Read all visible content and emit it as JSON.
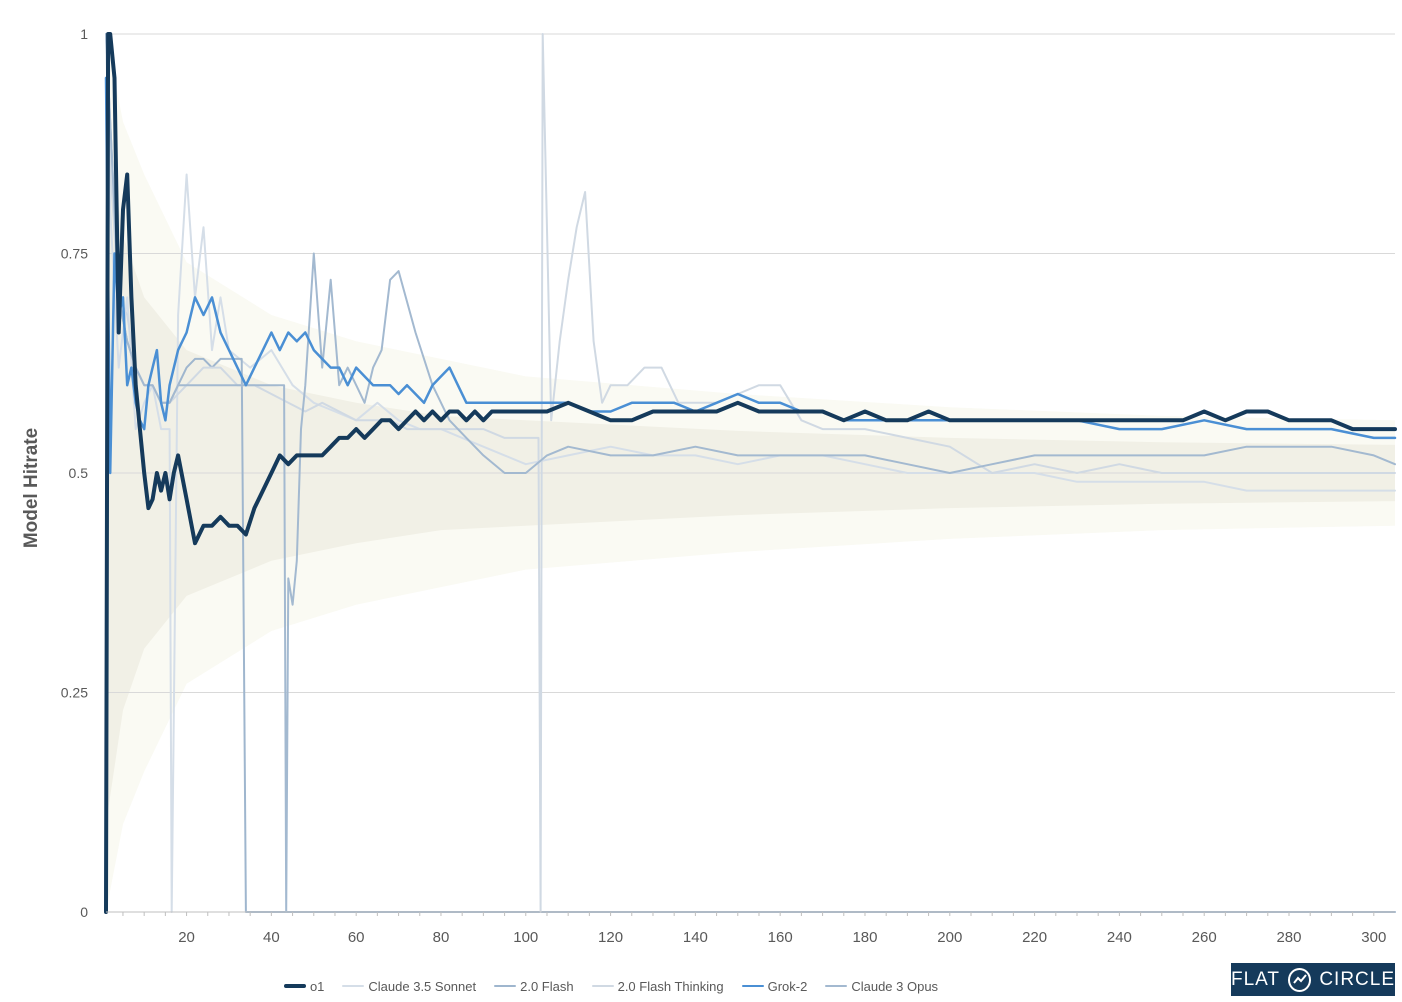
{
  "chart_data": {
    "type": "line",
    "ylabel": "Model Hitrate",
    "xlabel": "",
    "xlim": [
      1,
      305
    ],
    "ylim": [
      0,
      1
    ],
    "x_ticks": [
      20,
      40,
      60,
      80,
      100,
      120,
      140,
      160,
      180,
      200,
      220,
      240,
      260,
      280,
      300
    ],
    "y_ticks": [
      {
        "value": 0,
        "label": "0"
      },
      {
        "value": 0.25,
        "label": "0.25"
      },
      {
        "value": 0.5,
        "label": "0.5"
      },
      {
        "value": 0.75,
        "label": "0.75"
      },
      {
        "value": 1,
        "label": "1"
      }
    ],
    "grid": "horizontal",
    "legend_position": "bottom",
    "bands": [
      {
        "color": "#fafaf3",
        "x": [
          1,
          5,
          10,
          20,
          40,
          60,
          80,
          100,
          150,
          200,
          250,
          305
        ],
        "upper": [
          1.0,
          0.9,
          0.84,
          0.74,
          0.68,
          0.65,
          0.63,
          0.61,
          0.59,
          0.575,
          0.565,
          0.56
        ],
        "lower": [
          0.0,
          0.1,
          0.16,
          0.26,
          0.32,
          0.35,
          0.37,
          0.39,
          0.41,
          0.425,
          0.435,
          0.44
        ]
      },
      {
        "color": "#f1f0e6",
        "x": [
          1,
          5,
          10,
          20,
          40,
          60,
          80,
          100,
          150,
          200,
          250,
          305
        ],
        "upper": [
          0.9,
          0.77,
          0.7,
          0.64,
          0.6,
          0.58,
          0.565,
          0.56,
          0.548,
          0.54,
          0.535,
          0.532
        ],
        "lower": [
          0.1,
          0.23,
          0.3,
          0.36,
          0.4,
          0.42,
          0.435,
          0.44,
          0.452,
          0.46,
          0.465,
          0.468
        ]
      }
    ],
    "series": [
      {
        "name": "Claude 3.5 Sonnet",
        "color": "#d5dee8",
        "width": 2,
        "x": [
          1,
          2,
          4,
          6,
          8,
          10,
          12,
          14,
          16,
          16.5,
          18,
          20,
          22,
          24,
          26,
          28,
          30,
          35,
          40,
          45,
          50,
          55,
          60,
          65,
          70,
          75,
          80,
          85,
          90,
          95,
          100,
          110,
          120,
          130,
          140,
          150,
          160,
          170,
          180,
          190,
          200,
          210,
          220,
          230,
          240,
          250,
          260,
          270,
          280,
          290,
          300,
          305
        ],
        "y": [
          1,
          0.8,
          0.62,
          0.7,
          0.55,
          0.58,
          0.6,
          0.55,
          0.55,
          0,
          0.68,
          0.84,
          0.7,
          0.78,
          0.64,
          0.7,
          0.64,
          0.62,
          0.64,
          0.6,
          0.58,
          0.57,
          0.56,
          0.58,
          0.56,
          0.55,
          0.55,
          0.54,
          0.53,
          0.52,
          0.51,
          0.52,
          0.53,
          0.52,
          0.52,
          0.51,
          0.52,
          0.52,
          0.51,
          0.5,
          0.5,
          0.5,
          0.5,
          0.49,
          0.49,
          0.49,
          0.49,
          0.48,
          0.48,
          0.48,
          0.48,
          0.48
        ]
      },
      {
        "name": "2.0 Flash",
        "color": "#9fb6ce",
        "width": 2,
        "x": [
          1,
          2,
          4,
          6,
          8,
          10,
          12,
          14,
          16,
          18,
          20,
          22,
          24,
          26,
          28,
          30,
          33,
          34,
          36,
          38,
          40,
          42,
          44,
          46,
          48,
          50,
          52,
          55,
          58,
          60,
          63,
          66,
          70,
          74,
          78,
          82,
          86,
          90,
          95,
          100,
          110,
          120,
          130,
          140,
          150,
          160,
          170,
          180,
          190,
          200,
          210,
          220,
          230,
          240,
          250,
          260,
          270,
          280,
          290,
          300,
          305
        ],
        "y": [
          1,
          0.9,
          0.7,
          0.65,
          0.62,
          0.6,
          0.6,
          0.58,
          0.58,
          0.6,
          0.62,
          0.63,
          0.63,
          0.62,
          0.63,
          0.63,
          0.63,
          0,
          0.0,
          0.0,
          0.0,
          0.0,
          0.0,
          0.0,
          0.0,
          0.0,
          0.0,
          0.0,
          0.0,
          0.0,
          0.0,
          0.0,
          0.0,
          0.0,
          0.0,
          0.0,
          0.0,
          0.0,
          0.0,
          0.0,
          0.0,
          0.0,
          0.0,
          0.0,
          0.0,
          0.0,
          0.0,
          0.0,
          0.0,
          0.0,
          0.0,
          0.0,
          0.0,
          0.0,
          0.0,
          0.0,
          0.0,
          0.0,
          0.0,
          0.0,
          0.0
        ]
      },
      {
        "name": "2.0 Flash Thinking",
        "color": "#d0d9e3",
        "width": 2,
        "x": [
          1,
          2,
          4,
          6,
          8,
          10,
          12,
          14,
          16,
          20,
          24,
          28,
          32,
          36,
          40,
          44,
          48,
          52,
          56,
          60,
          64,
          68,
          72,
          76,
          80,
          85,
          90,
          95,
          100,
          103,
          103.5,
          104,
          106,
          108,
          110,
          112,
          114,
          116,
          118,
          120,
          124,
          128,
          132,
          136,
          140,
          145,
          150,
          155,
          160,
          165,
          170,
          180,
          190,
          200,
          210,
          220,
          230,
          240,
          250,
          260,
          270,
          280,
          290,
          300,
          305
        ],
        "y": [
          1,
          0.85,
          0.7,
          0.68,
          0.62,
          0.6,
          0.6,
          0.58,
          0.58,
          0.6,
          0.62,
          0.62,
          0.6,
          0.6,
          0.59,
          0.58,
          0.57,
          0.58,
          0.57,
          0.56,
          0.56,
          0.56,
          0.55,
          0.55,
          0.55,
          0.55,
          0.55,
          0.54,
          0.54,
          0.54,
          0,
          1,
          0.56,
          0.65,
          0.72,
          0.78,
          0.82,
          0.65,
          0.58,
          0.6,
          0.6,
          0.62,
          0.62,
          0.58,
          0.58,
          0.58,
          0.59,
          0.6,
          0.6,
          0.56,
          0.55,
          0.55,
          0.54,
          0.53,
          0.5,
          0.51,
          0.5,
          0.51,
          0.5,
          0.5,
          0.5,
          0.5,
          0.5,
          0.5,
          0.5
        ]
      },
      {
        "name": "Claude 3 Opus",
        "color": "#a3b9d0",
        "width": 2,
        "x": [
          1,
          2,
          4,
          6,
          8,
          10,
          12,
          14,
          16,
          18,
          20,
          22,
          24,
          26,
          28,
          30,
          32,
          34,
          36,
          38,
          40,
          42,
          43,
          43.5,
          44,
          45,
          46,
          47,
          48,
          50,
          52,
          54,
          56,
          58,
          60,
          62,
          64,
          66,
          68,
          70,
          74,
          78,
          82,
          86,
          90,
          95,
          100,
          105,
          110,
          120,
          130,
          140,
          150,
          160,
          170,
          180,
          190,
          200,
          210,
          220,
          230,
          240,
          250,
          260,
          270,
          280,
          290,
          300,
          305
        ],
        "y": [
          1,
          0.9,
          0.7,
          0.65,
          0.62,
          0.6,
          0.6,
          0.58,
          0.58,
          0.6,
          0.6,
          0.6,
          0.6,
          0.6,
          0.6,
          0.6,
          0.6,
          0.6,
          0.6,
          0.6,
          0.6,
          0.6,
          0.6,
          0,
          0.38,
          0.35,
          0.4,
          0.55,
          0.6,
          0.75,
          0.62,
          0.72,
          0.6,
          0.62,
          0.6,
          0.58,
          0.62,
          0.64,
          0.72,
          0.73,
          0.66,
          0.6,
          0.56,
          0.54,
          0.52,
          0.5,
          0.5,
          0.52,
          0.53,
          0.52,
          0.52,
          0.53,
          0.52,
          0.52,
          0.52,
          0.52,
          0.51,
          0.5,
          0.51,
          0.52,
          0.52,
          0.52,
          0.52,
          0.52,
          0.53,
          0.53,
          0.53,
          0.52,
          0.51
        ]
      },
      {
        "name": "Grok-2",
        "color": "#4a8fd4",
        "width": 2.5,
        "x": [
          1,
          2,
          3,
          4,
          5,
          6,
          7,
          8,
          9,
          10,
          11,
          12,
          13,
          14,
          15,
          16,
          18,
          20,
          22,
          24,
          26,
          28,
          30,
          32,
          34,
          36,
          38,
          40,
          42,
          44,
          46,
          48,
          50,
          52,
          54,
          56,
          58,
          60,
          62,
          64,
          66,
          68,
          70,
          72,
          74,
          76,
          78,
          80,
          82,
          84,
          86,
          88,
          90,
          95,
          100,
          105,
          110,
          115,
          120,
          125,
          130,
          135,
          140,
          145,
          150,
          155,
          160,
          165,
          170,
          175,
          180,
          190,
          200,
          210,
          220,
          230,
          240,
          250,
          260,
          270,
          280,
          290,
          300,
          305
        ],
        "y": [
          0.95,
          0.5,
          0.75,
          0.68,
          0.7,
          0.6,
          0.62,
          0.58,
          0.56,
          0.55,
          0.6,
          0.62,
          0.64,
          0.58,
          0.56,
          0.6,
          0.64,
          0.66,
          0.7,
          0.68,
          0.7,
          0.66,
          0.64,
          0.62,
          0.6,
          0.62,
          0.64,
          0.66,
          0.64,
          0.66,
          0.65,
          0.66,
          0.64,
          0.63,
          0.62,
          0.62,
          0.6,
          0.62,
          0.61,
          0.6,
          0.6,
          0.6,
          0.59,
          0.6,
          0.59,
          0.58,
          0.6,
          0.61,
          0.62,
          0.6,
          0.58,
          0.58,
          0.58,
          0.58,
          0.58,
          0.58,
          0.58,
          0.57,
          0.57,
          0.58,
          0.58,
          0.58,
          0.57,
          0.58,
          0.59,
          0.58,
          0.58,
          0.57,
          0.57,
          0.56,
          0.56,
          0.56,
          0.56,
          0.56,
          0.56,
          0.56,
          0.55,
          0.55,
          0.56,
          0.55,
          0.55,
          0.55,
          0.54,
          0.54
        ]
      },
      {
        "name": "o1",
        "color": "#153a5b",
        "width": 4,
        "x": [
          1,
          1.5,
          2,
          3,
          4,
          5,
          6,
          7,
          8,
          9,
          10,
          11,
          12,
          13,
          14,
          15,
          16,
          17,
          18,
          20,
          22,
          24,
          26,
          28,
          30,
          32,
          34,
          36,
          38,
          40,
          42,
          44,
          46,
          48,
          50,
          52,
          54,
          56,
          58,
          60,
          62,
          64,
          66,
          68,
          70,
          72,
          74,
          76,
          78,
          80,
          82,
          84,
          86,
          88,
          90,
          92,
          94,
          96,
          98,
          100,
          105,
          110,
          115,
          120,
          125,
          130,
          135,
          140,
          145,
          150,
          155,
          160,
          165,
          170,
          175,
          180,
          185,
          190,
          195,
          200,
          205,
          210,
          215,
          220,
          225,
          230,
          235,
          240,
          245,
          250,
          255,
          260,
          265,
          270,
          275,
          280,
          285,
          290,
          295,
          300,
          305
        ],
        "y": [
          0,
          1,
          1,
          0.95,
          0.66,
          0.8,
          0.84,
          0.7,
          0.6,
          0.55,
          0.5,
          0.46,
          0.47,
          0.5,
          0.48,
          0.5,
          0.47,
          0.5,
          0.52,
          0.47,
          0.42,
          0.44,
          0.44,
          0.45,
          0.44,
          0.44,
          0.43,
          0.46,
          0.48,
          0.5,
          0.52,
          0.51,
          0.52,
          0.52,
          0.52,
          0.52,
          0.53,
          0.54,
          0.54,
          0.55,
          0.54,
          0.55,
          0.56,
          0.56,
          0.55,
          0.56,
          0.57,
          0.56,
          0.57,
          0.56,
          0.57,
          0.57,
          0.56,
          0.57,
          0.56,
          0.57,
          0.57,
          0.57,
          0.57,
          0.57,
          0.57,
          0.58,
          0.57,
          0.56,
          0.56,
          0.57,
          0.57,
          0.57,
          0.57,
          0.58,
          0.57,
          0.57,
          0.57,
          0.57,
          0.56,
          0.57,
          0.56,
          0.56,
          0.57,
          0.56,
          0.56,
          0.56,
          0.56,
          0.56,
          0.56,
          0.56,
          0.56,
          0.56,
          0.56,
          0.56,
          0.56,
          0.57,
          0.56,
          0.57,
          0.57,
          0.56,
          0.56,
          0.56,
          0.55,
          0.55,
          0.55
        ]
      }
    ],
    "legend": [
      {
        "name": "o1",
        "color": "#153a5b",
        "width": 4
      },
      {
        "name": "Claude 3.5 Sonnet",
        "color": "#d5dee8",
        "width": 2
      },
      {
        "name": "2.0 Flash",
        "color": "#9fb6ce",
        "width": 2
      },
      {
        "name": "2.0 Flash Thinking",
        "color": "#d0d9e3",
        "width": 2
      },
      {
        "name": "Grok-2",
        "color": "#4a8fd4",
        "width": 2.5
      },
      {
        "name": "Claude 3 Opus",
        "color": "#a3b9d0",
        "width": 2
      }
    ]
  },
  "brand": {
    "left": "FLAT",
    "right": "CIRCLE",
    "icon": "trend-circle-icon",
    "color": "#153a5b"
  }
}
